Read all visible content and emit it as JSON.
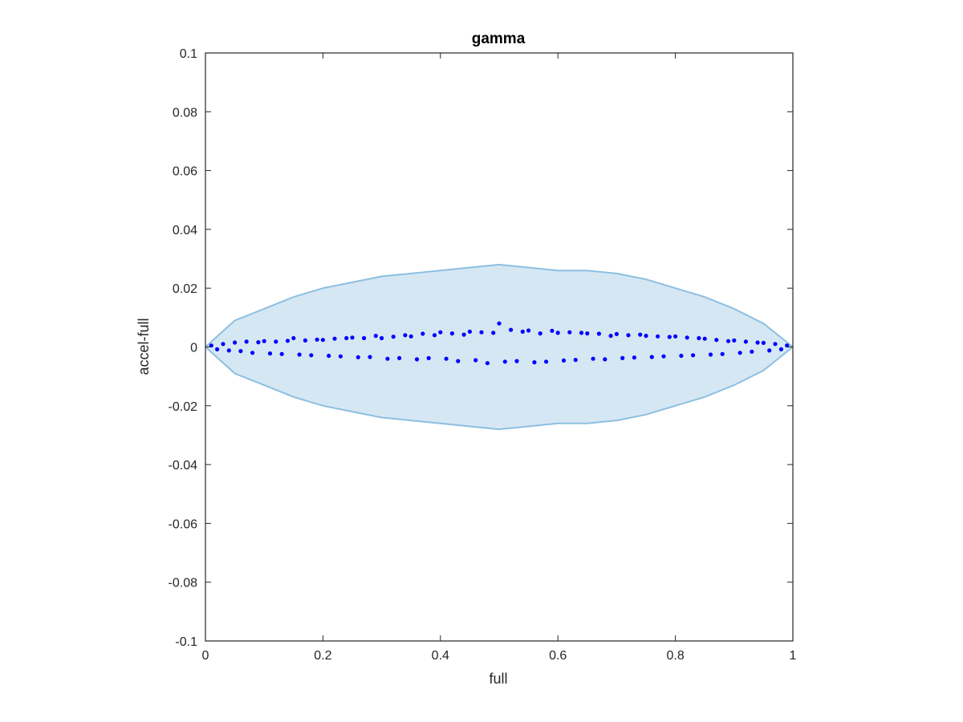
{
  "chart_data": {
    "type": "scatter",
    "title": "gamma",
    "xlabel": "full",
    "ylabel": "accel-full",
    "xlim": [
      0,
      1
    ],
    "ylim": [
      -0.1,
      0.1
    ],
    "xticks": [
      0,
      0.2,
      0.4,
      0.6,
      0.8,
      1
    ],
    "xtick_labels": [
      "0",
      "0.2",
      "0.4",
      "0.6",
      "0.8",
      "1"
    ],
    "yticks": [
      0.1,
      0.08,
      0.06,
      0.04,
      0.02,
      0,
      -0.02,
      -0.04,
      -0.06,
      -0.08,
      -0.1
    ],
    "ytick_labels": [
      "0.1",
      "0.08",
      "0.06",
      "0.04",
      "0.02",
      "0",
      "-0.02",
      "-0.04",
      "-0.06",
      "-0.08",
      "-0.1"
    ],
    "grid": false,
    "legend": "none",
    "colors": {
      "band_fill": "#d6e7f4",
      "band_edge": "#8cbfe0",
      "points": "#0000ff",
      "axes": "#262626"
    },
    "band": {
      "x": [
        0,
        0.05,
        0.1,
        0.15,
        0.2,
        0.25,
        0.3,
        0.35,
        0.4,
        0.45,
        0.5,
        0.55,
        0.6,
        0.65,
        0.7,
        0.75,
        0.8,
        0.85,
        0.9,
        0.95,
        1
      ],
      "upper": [
        0,
        0.009,
        0.013,
        0.017,
        0.02,
        0.022,
        0.024,
        0.025,
        0.026,
        0.027,
        0.028,
        0.027,
        0.026,
        0.026,
        0.025,
        0.023,
        0.02,
        0.017,
        0.013,
        0.008,
        0
      ],
      "lower": [
        0,
        -0.009,
        -0.013,
        -0.017,
        -0.02,
        -0.022,
        -0.024,
        -0.025,
        -0.026,
        -0.027,
        -0.028,
        -0.027,
        -0.026,
        -0.026,
        -0.025,
        -0.023,
        -0.02,
        -0.017,
        -0.013,
        -0.008,
        0
      ]
    },
    "series": [
      {
        "x": [
          0.01,
          0.02,
          0.03,
          0.04,
          0.05,
          0.06,
          0.07,
          0.08,
          0.09,
          0.1,
          0.11,
          0.12,
          0.13,
          0.14,
          0.15,
          0.16,
          0.17,
          0.18,
          0.19,
          0.2,
          0.21,
          0.22,
          0.23,
          0.24,
          0.25,
          0.26,
          0.27,
          0.28,
          0.29,
          0.3,
          0.31,
          0.32,
          0.33,
          0.34,
          0.35,
          0.36,
          0.37,
          0.38,
          0.39,
          0.4,
          0.41,
          0.42,
          0.43,
          0.44,
          0.45,
          0.46,
          0.47,
          0.48,
          0.49,
          0.5,
          0.51,
          0.52,
          0.53,
          0.54,
          0.55,
          0.56,
          0.57,
          0.58,
          0.59,
          0.6,
          0.61,
          0.62,
          0.63,
          0.64,
          0.65,
          0.66,
          0.67,
          0.68,
          0.69,
          0.7,
          0.71,
          0.72,
          0.73,
          0.74,
          0.75,
          0.76,
          0.77,
          0.78,
          0.79,
          0.8,
          0.81,
          0.82,
          0.83,
          0.84,
          0.85,
          0.86,
          0.87,
          0.88,
          0.89,
          0.9,
          0.91,
          0.92,
          0.93,
          0.94,
          0.95,
          0.96,
          0.97,
          0.98,
          0.99
        ],
        "y": [
          0.0005,
          -0.0008,
          0.001,
          -0.0012,
          0.0015,
          -0.0014,
          0.0018,
          -0.002,
          0.0016,
          0.002,
          -0.0022,
          0.0018,
          -0.0024,
          0.0021,
          0.003,
          -0.0026,
          0.0022,
          -0.0028,
          0.0025,
          0.0024,
          -0.003,
          0.0028,
          -0.0032,
          0.003,
          0.0032,
          -0.0035,
          0.003,
          -0.0034,
          0.0038,
          0.003,
          -0.004,
          0.0035,
          -0.0038,
          0.004,
          0.0036,
          -0.0042,
          0.0045,
          -0.0038,
          0.004,
          0.005,
          -0.004,
          0.0046,
          -0.0048,
          0.0042,
          0.0052,
          -0.0045,
          0.005,
          -0.0055,
          0.0048,
          0.008,
          -0.005,
          0.0058,
          -0.0048,
          0.0052,
          0.0056,
          -0.0052,
          0.0046,
          -0.005,
          0.0055,
          0.0048,
          -0.0046,
          0.005,
          -0.0044,
          0.0048,
          0.0046,
          -0.004,
          0.0045,
          -0.0042,
          0.0038,
          0.0044,
          -0.0038,
          0.004,
          -0.0036,
          0.0042,
          0.0038,
          -0.0034,
          0.0036,
          -0.0032,
          0.0034,
          0.0036,
          -0.003,
          0.0032,
          -0.0028,
          0.003,
          0.0028,
          -0.0026,
          0.0024,
          -0.0024,
          0.002,
          0.0022,
          -0.002,
          0.0018,
          -0.0016,
          0.0015,
          0.0014,
          -0.0012,
          0.001,
          -0.0008,
          0.0005
        ]
      }
    ]
  }
}
